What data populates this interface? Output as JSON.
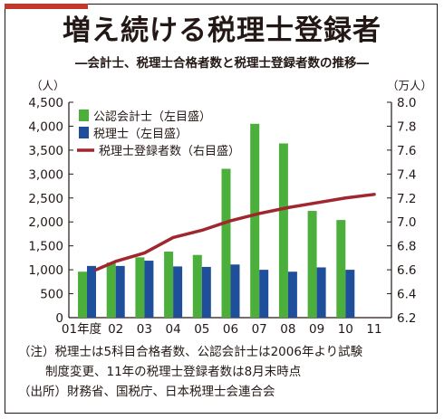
{
  "header": {
    "title": "増え続ける税理士登録者",
    "subtitle": "―会計士、税理士合格者数と税理士登録者数の推移―"
  },
  "chart_data": {
    "type": "bar",
    "left_unit": "（人）",
    "right_unit": "（万人）",
    "categories": [
      "01年度",
      "02",
      "03",
      "04",
      "05",
      "06",
      "07",
      "08",
      "09",
      "10",
      "11"
    ],
    "y_left": {
      "range": [
        0,
        4500
      ],
      "ticks": [
        "0",
        "500",
        "1,000",
        "1,500",
        "2,000",
        "2,500",
        "3,000",
        "3,500",
        "4,000",
        "4,500"
      ]
    },
    "y_right": {
      "range": [
        6.2,
        8.0
      ],
      "ticks": [
        "6.2",
        "6.4",
        "6.6",
        "6.8",
        "7.0",
        "7.2",
        "7.4",
        "7.6",
        "7.8",
        "8.0"
      ]
    },
    "series": [
      {
        "name": "公認会計士（左目盛）",
        "kind": "bar",
        "axis": "left",
        "color": "#4caf3c",
        "values": [
          960,
          1150,
          1260,
          1380,
          1310,
          3110,
          4050,
          3640,
          2230,
          2040,
          null
        ]
      },
      {
        "name": "税理士（左目盛）",
        "kind": "bar",
        "axis": "left",
        "color": "#1f4e9a",
        "values": [
          1080,
          1080,
          1190,
          1070,
          1060,
          1110,
          1000,
          960,
          1050,
          1000,
          null
        ]
      },
      {
        "name": "税理士登録者数（右目盛）",
        "kind": "line",
        "axis": "right",
        "color": "#a0272d",
        "values": [
          6.6,
          6.67,
          6.74,
          6.87,
          6.93,
          7.01,
          7.07,
          7.12,
          7.16,
          7.2,
          7.23
        ]
      }
    ],
    "legend_position": "top-left"
  },
  "notes": {
    "line1": "（注）税理士は5科目合格者数、公認会計士は2006年より試験",
    "line2": "制度変更、11年の税理士登録者数は8月末時点",
    "line3": "（出所）財務省、国税庁、日本税理士会連合会"
  }
}
